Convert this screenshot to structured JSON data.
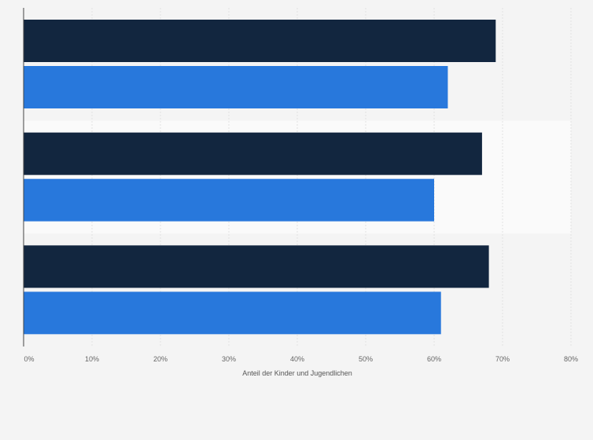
{
  "chart_data": {
    "type": "bar",
    "orientation": "horizontal",
    "categories": [
      "",
      "",
      ""
    ],
    "series": [
      {
        "name": "",
        "color": "#12263f",
        "values": [
          69,
          67,
          68
        ]
      },
      {
        "name": "",
        "color": "#2878dc",
        "values": [
          62,
          60,
          61
        ]
      }
    ],
    "title": "",
    "xlabel": "Anteil der Kinder und Jugendlichen",
    "ylabel": "",
    "xlim": [
      0,
      80
    ],
    "xticks": [
      0,
      10,
      20,
      30,
      40,
      50,
      60,
      70,
      80
    ],
    "tick_labels": [
      "0%",
      "10%",
      "20%",
      "30%",
      "40%",
      "50%",
      "60%",
      "70%",
      "80%"
    ],
    "grid": true,
    "legend": "none",
    "band_colors": [
      "#f4f4f4",
      "#fafafa"
    ],
    "grid_color": "#e2e2e2",
    "axis_color": "#444444"
  }
}
